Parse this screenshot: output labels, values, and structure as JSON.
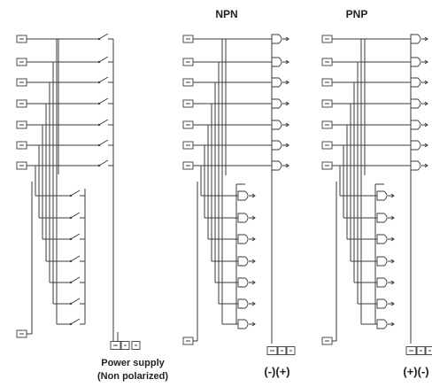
{
  "headers": {
    "npn": "NPN",
    "pnp": "PNP"
  },
  "panel1": {
    "caption_line1": "Power supply",
    "caption_line2": "(Non polarized)"
  },
  "panel2": {
    "polarity": "(-)(+)"
  },
  "panel3": {
    "polarity": "(+)(-)"
  },
  "colors": {
    "line": "#3a3a3a",
    "text": "#222222",
    "background": "#ffffff"
  }
}
